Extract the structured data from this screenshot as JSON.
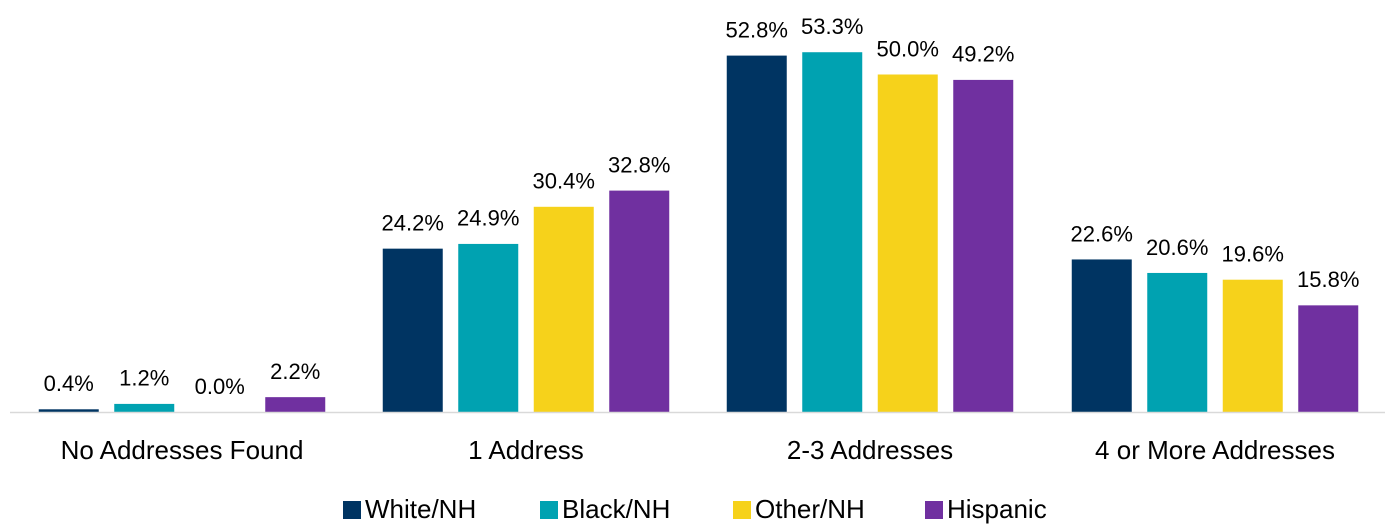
{
  "chart_data": {
    "type": "bar",
    "categories": [
      "No Addresses Found",
      "1 Address",
      "2-3 Addresses",
      "4 or More Addresses"
    ],
    "series": [
      {
        "name": "White/NH",
        "color": "#003462",
        "values": [
          0.4,
          24.2,
          52.8,
          22.6
        ],
        "value_labels": [
          "0.4%",
          "24.2%",
          "52.8%",
          "22.6%"
        ]
      },
      {
        "name": "Black/NH",
        "color": "#00a2b1",
        "values": [
          1.2,
          24.9,
          53.3,
          20.6
        ],
        "value_labels": [
          "1.2%",
          "24.9%",
          "53.3%",
          "20.6%"
        ]
      },
      {
        "name": "Other/NH",
        "color": "#f6d21b",
        "values": [
          0.0,
          30.4,
          50.0,
          19.6
        ],
        "value_labels": [
          "0.0%",
          "30.4%",
          "50.0%",
          "19.6%"
        ]
      },
      {
        "name": "Hispanic",
        "color": "#7030a0",
        "values": [
          2.2,
          32.8,
          49.2,
          15.8
        ],
        "value_labels": [
          "2.2%",
          "32.8%",
          "49.2%",
          "15.8%"
        ]
      }
    ],
    "legend": "bottom"
  }
}
